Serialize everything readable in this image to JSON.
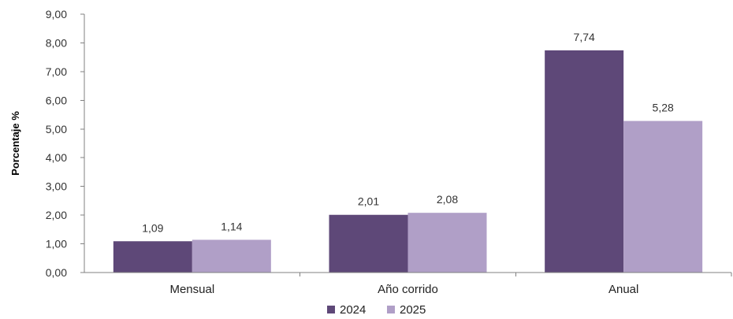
{
  "chart_data": {
    "type": "bar",
    "categories": [
      "Mensual",
      "Año corrido",
      "Anual"
    ],
    "series": [
      {
        "name": "2024",
        "color": "#5e4878",
        "values": [
          1.09,
          2.01,
          7.74
        ],
        "labels": [
          "1,09",
          "2,01",
          "7,74"
        ]
      },
      {
        "name": "2025",
        "color": "#b09fc7",
        "values": [
          1.14,
          2.08,
          5.28
        ],
        "labels": [
          "1,14",
          "2,08",
          "5,28"
        ]
      }
    ],
    "title": "",
    "xlabel": "",
    "ylabel": "Porcentaje %",
    "ylim": [
      0,
      9
    ],
    "yticks": [
      0,
      1,
      2,
      3,
      4,
      5,
      6,
      7,
      8,
      9
    ],
    "ytick_labels": [
      "0,00",
      "1,00",
      "2,00",
      "3,00",
      "4,00",
      "5,00",
      "6,00",
      "7,00",
      "8,00",
      "9,00"
    ],
    "grid": false,
    "legend_position": "bottom-center"
  }
}
